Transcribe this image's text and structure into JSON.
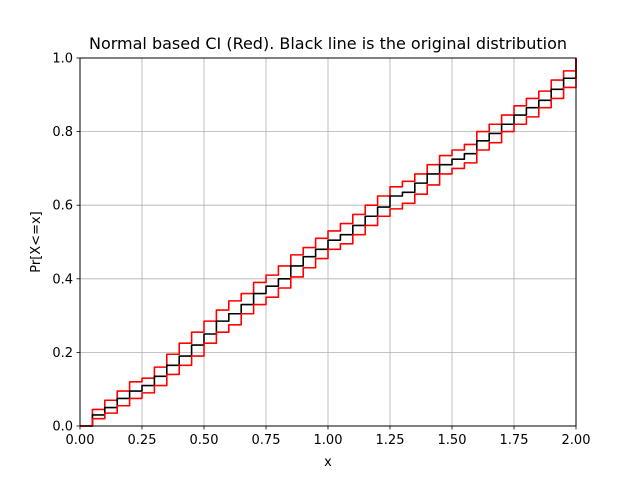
{
  "chart_data": {
    "type": "line",
    "title": "Normal based CI (Red). Black line is the original distribution",
    "xlabel": "x",
    "ylabel": "Pr[X<=x]",
    "xlim": [
      0.0,
      2.0
    ],
    "ylim": [
      0.0,
      1.0
    ],
    "xticks": [
      "0.00",
      "0.25",
      "0.50",
      "0.75",
      "1.00",
      "1.25",
      "1.50",
      "1.75",
      "2.00"
    ],
    "yticks": [
      "0.0",
      "0.2",
      "0.4",
      "0.6",
      "0.8",
      "1.0"
    ],
    "grid": true,
    "colors": {
      "original": "#000000",
      "ci": "#ff0000",
      "grid": "#b0b0b0"
    },
    "x": [
      0.0,
      0.05,
      0.1,
      0.15,
      0.2,
      0.25,
      0.3,
      0.35,
      0.4,
      0.45,
      0.5,
      0.55,
      0.6,
      0.65,
      0.7,
      0.75,
      0.8,
      0.85,
      0.9,
      0.95,
      1.0,
      1.05,
      1.1,
      1.15,
      1.2,
      1.25,
      1.3,
      1.35,
      1.4,
      1.45,
      1.5,
      1.55,
      1.6,
      1.65,
      1.7,
      1.75,
      1.8,
      1.85,
      1.9,
      1.95,
      2.0
    ],
    "series": [
      {
        "key": "upper",
        "values": [
          0.0,
          0.045,
          0.07,
          0.095,
          0.12,
          0.13,
          0.16,
          0.195,
          0.225,
          0.255,
          0.285,
          0.315,
          0.34,
          0.36,
          0.39,
          0.41,
          0.435,
          0.465,
          0.485,
          0.51,
          0.53,
          0.55,
          0.575,
          0.6,
          0.625,
          0.65,
          0.665,
          0.685,
          0.71,
          0.735,
          0.75,
          0.765,
          0.8,
          0.82,
          0.845,
          0.87,
          0.89,
          0.91,
          0.94,
          0.965,
          1.0
        ]
      },
      {
        "key": "original",
        "values": [
          0.0,
          0.03,
          0.05,
          0.075,
          0.095,
          0.11,
          0.135,
          0.165,
          0.19,
          0.22,
          0.25,
          0.285,
          0.305,
          0.33,
          0.36,
          0.38,
          0.4,
          0.435,
          0.46,
          0.48,
          0.505,
          0.52,
          0.545,
          0.57,
          0.595,
          0.625,
          0.635,
          0.66,
          0.685,
          0.71,
          0.725,
          0.74,
          0.775,
          0.795,
          0.82,
          0.845,
          0.865,
          0.885,
          0.915,
          0.945,
          1.0
        ]
      },
      {
        "key": "lower",
        "values": [
          0.0,
          0.02,
          0.035,
          0.055,
          0.075,
          0.09,
          0.11,
          0.14,
          0.165,
          0.19,
          0.225,
          0.255,
          0.275,
          0.305,
          0.33,
          0.35,
          0.375,
          0.405,
          0.43,
          0.455,
          0.48,
          0.495,
          0.52,
          0.545,
          0.57,
          0.59,
          0.605,
          0.63,
          0.655,
          0.685,
          0.7,
          0.715,
          0.75,
          0.77,
          0.8,
          0.82,
          0.84,
          0.865,
          0.89,
          0.92,
          1.0
        ]
      }
    ]
  }
}
